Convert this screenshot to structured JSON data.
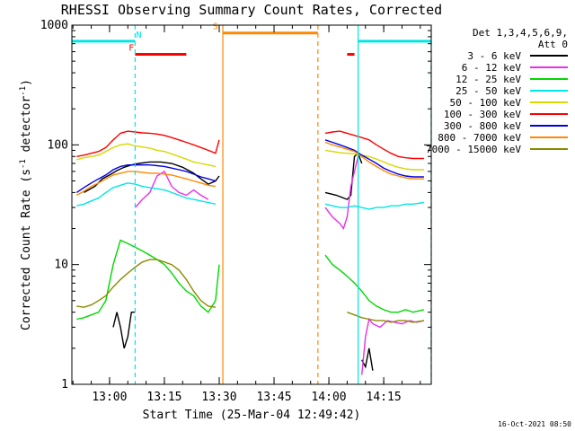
{
  "chart_data": {
    "type": "line",
    "title": "RHESSI Observing Summary Count Rates, Corrected",
    "xlabel": "Start Time (25-Mar-04 12:49:42)",
    "ylabel": "Corrected Count Rate (s",
    "ylabel_sup1": "-1",
    "ylabel_mid": " detector",
    "ylabel_sup2": "-1",
    "ylabel_end": ")",
    "y_scale": "log",
    "ylim": [
      1,
      1000
    ],
    "xlim": [
      "12:49:42",
      "14:28"
    ],
    "y_ticks": [
      "1",
      "10",
      "100",
      "1000"
    ],
    "x_ticks": [
      "13:00",
      "13:15",
      "13:30",
      "13:45",
      "14:00",
      "14:15"
    ],
    "legend_position": "right",
    "legend_header": [
      "Det 1,3,4,5,6,9,",
      "Att 0"
    ],
    "timestamp": "16-Oct-2021 08:50",
    "series": [
      {
        "name": "3 - 6 keV",
        "color": "#000000",
        "segments": [
          {
            "x": [
              "12:53",
              "12:56",
              "12:58",
              "13:00",
              "13:02",
              "13:04",
              "13:06",
              "13:08",
              "13:11",
              "13:14",
              "13:17",
              "13:20",
              "13:23",
              "13:25",
              "13:27",
              "13:29",
              "13:30"
            ],
            "y": [
              40,
              45,
              52,
              56,
              61,
              65,
              68,
              70,
              72,
              72,
              70,
              65,
              58,
              52,
              47,
              50,
              55
            ]
          },
          {
            "x": [
              "13:59",
              "14:02",
              "14:04",
              "14:05",
              "14:06",
              "14:07",
              "14:08",
              "14:09"
            ],
            "y": [
              40,
              38,
              36,
              35,
              38,
              80,
              85,
              70
            ]
          },
          {
            "x": [
              "13:01",
              "13:02",
              "13:03",
              "13:04",
              "13:05",
              "13:06",
              "13:07"
            ],
            "y": [
              3,
              4,
              3,
              2,
              2.5,
              4,
              4
            ]
          },
          {
            "x": [
              "14:09",
              "14:10",
              "14:11",
              "14:12"
            ],
            "y": [
              1.6,
              1.4,
              2,
              1.3
            ]
          }
        ]
      },
      {
        "name": "6 - 12 keV",
        "color": "#e830e8",
        "segments": [
          {
            "x": [
              "13:07",
              "13:09",
              "13:11",
              "13:13",
              "13:15",
              "13:17",
              "13:19",
              "13:21",
              "13:23",
              "13:25",
              "13:27"
            ],
            "y": [
              30,
              35,
              40,
              55,
              60,
              45,
              40,
              38,
              42,
              38,
              35
            ]
          },
          {
            "x": [
              "13:59",
              "14:01",
              "14:03",
              "14:04",
              "14:05",
              "14:06",
              "14:07",
              "14:08"
            ],
            "y": [
              30,
              25,
              22,
              20,
              25,
              45,
              60,
              80
            ]
          },
          {
            "x": [
              "14:09",
              "14:10",
              "14:11",
              "14:12",
              "14:14",
              "14:16",
              "14:18",
              "14:20",
              "14:22",
              "14:24",
              "14:26"
            ],
            "y": [
              1.2,
              2.5,
              3.5,
              3.2,
              3,
              3.4,
              3.3,
              3.2,
              3.4,
              3.3,
              3.4
            ]
          }
        ]
      },
      {
        "name": "12 - 25 keV",
        "color": "#00d800",
        "segments": [
          {
            "x": [
              "12:51",
              "12:53",
              "12:55",
              "12:57",
              "12:59",
              "13:01",
              "13:03",
              "13:05",
              "13:07",
              "13:09",
              "13:11",
              "13:13",
              "13:15",
              "13:17",
              "13:19",
              "13:21",
              "13:23",
              "13:25",
              "13:27",
              "13:29",
              "13:30"
            ],
            "y": [
              3.5,
              3.6,
              3.8,
              4,
              5,
              10,
              16,
              15,
              14,
              13,
              12,
              11,
              10,
              8.5,
              7,
              6,
              5.5,
              4.5,
              4,
              5,
              10
            ]
          },
          {
            "x": [
              "13:59",
              "14:01",
              "14:03",
              "14:05",
              "14:07",
              "14:09",
              "14:11",
              "14:13",
              "14:15",
              "14:17",
              "14:19",
              "14:21",
              "14:23",
              "14:26"
            ],
            "y": [
              12,
              10,
              9,
              8,
              7,
              6,
              5,
              4.5,
              4.2,
              4,
              4,
              4.2,
              4,
              4.2
            ]
          }
        ]
      },
      {
        "name": "25 - 50 keV",
        "color": "#00e6e6",
        "segments": [
          {
            "x": [
              "12:51",
              "12:53",
              "12:55",
              "12:57",
              "12:59",
              "13:01",
              "13:03",
              "13:05",
              "13:07",
              "13:09",
              "13:11",
              "13:13",
              "13:15",
              "13:17",
              "13:19",
              "13:21",
              "13:23",
              "13:25",
              "13:27",
              "13:29"
            ],
            "y": [
              31,
              32,
              34,
              36,
              40,
              44,
              46,
              48,
              47,
              45,
              44,
              43,
              42,
              40,
              38,
              36,
              35,
              34,
              33,
              32
            ]
          },
          {
            "x": [
              "13:59",
              "14:01",
              "14:03",
              "14:05",
              "14:07",
              "14:09",
              "14:11",
              "14:13",
              "14:15",
              "14:17",
              "14:19",
              "14:21",
              "14:23",
              "14:26"
            ],
            "y": [
              32,
              31,
              30,
              30,
              31,
              30,
              29,
              30,
              30,
              31,
              31,
              32,
              32,
              33
            ]
          }
        ]
      },
      {
        "name": "50 - 100 keV",
        "color": "#d8d800",
        "segments": [
          {
            "x": [
              "12:51",
              "12:53",
              "12:55",
              "12:57",
              "12:59",
              "13:01",
              "13:03",
              "13:05",
              "13:07",
              "13:09",
              "13:11",
              "13:13",
              "13:15",
              "13:17",
              "13:19",
              "13:21",
              "13:23",
              "13:25",
              "13:27",
              "13:29"
            ],
            "y": [
              75,
              78,
              80,
              82,
              88,
              95,
              100,
              102,
              98,
              96,
              94,
              90,
              88,
              84,
              80,
              76,
              72,
              70,
              68,
              66
            ]
          },
          {
            "x": [
              "13:59",
              "14:01",
              "14:03",
              "14:05",
              "14:07",
              "14:09",
              "14:11",
              "14:13",
              "14:15",
              "14:17",
              "14:19",
              "14:21",
              "14:23",
              "14:26"
            ],
            "y": [
              90,
              88,
              86,
              85,
              84,
              82,
              80,
              76,
              72,
              68,
              65,
              63,
              62,
              62
            ]
          }
        ]
      },
      {
        "name": "100 - 300 keV",
        "color": "#ff0000",
        "segments": [
          {
            "x": [
              "12:51",
              "12:53",
              "12:55",
              "12:57",
              "12:59",
              "13:01",
              "13:03",
              "13:05",
              "13:07",
              "13:09",
              "13:11",
              "13:13",
              "13:15",
              "13:17",
              "13:19",
              "13:21",
              "13:23",
              "13:25",
              "13:27",
              "13:29",
              "13:30"
            ],
            "y": [
              80,
              82,
              85,
              88,
              95,
              110,
              125,
              130,
              128,
              126,
              125,
              123,
              120,
              115,
              110,
              105,
              100,
              95,
              90,
              85,
              110
            ]
          },
          {
            "x": [
              "13:59",
              "14:01",
              "14:03",
              "14:05",
              "14:07",
              "14:09",
              "14:11",
              "14:13",
              "14:15",
              "14:17",
              "14:19",
              "14:21",
              "14:23",
              "14:26"
            ],
            "y": [
              125,
              128,
              130,
              125,
              120,
              115,
              110,
              100,
              92,
              85,
              80,
              78,
              77,
              77
            ]
          }
        ]
      },
      {
        "name": "300 - 800 keV",
        "color": "#0000e0",
        "segments": [
          {
            "x": [
              "12:51",
              "12:53",
              "12:55",
              "12:57",
              "12:59",
              "13:01",
              "13:03",
              "13:05",
              "13:07",
              "13:09",
              "13:11",
              "13:13",
              "13:15",
              "13:17",
              "13:19",
              "13:21",
              "13:23",
              "13:25",
              "13:27",
              "13:29"
            ],
            "y": [
              40,
              44,
              48,
              52,
              56,
              62,
              66,
              68,
              68,
              68,
              68,
              67,
              66,
              64,
              62,
              60,
              57,
              54,
              52,
              50
            ]
          },
          {
            "x": [
              "13:59",
              "14:01",
              "14:03",
              "14:05",
              "14:07",
              "14:09",
              "14:11",
              "14:13",
              "14:15",
              "14:17",
              "14:19",
              "14:21",
              "14:23",
              "14:26"
            ],
            "y": [
              110,
              105,
              100,
              95,
              90,
              82,
              76,
              70,
              64,
              60,
              57,
              55,
              54,
              54
            ]
          }
        ]
      },
      {
        "name": "800 - 7000 keV",
        "color": "#ff8800",
        "segments": [
          {
            "x": [
              "12:51",
              "12:53",
              "12:55",
              "12:57",
              "12:59",
              "13:01",
              "13:03",
              "13:05",
              "13:07",
              "13:09",
              "13:11",
              "13:13",
              "13:15",
              "13:17",
              "13:19",
              "13:21",
              "13:23",
              "13:25",
              "13:27",
              "13:29"
            ],
            "y": [
              38,
              41,
              45,
              48,
              52,
              56,
              58,
              60,
              60,
              59,
              58,
              58,
              57,
              56,
              54,
              52,
              50,
              48,
              46,
              45
            ]
          },
          {
            "x": [
              "13:59",
              "14:01",
              "14:03",
              "14:05",
              "14:07",
              "14:09",
              "14:11",
              "14:13",
              "14:15",
              "14:17",
              "14:19",
              "14:21",
              "14:23",
              "14:26"
            ],
            "y": [
              105,
              100,
              96,
              92,
              88,
              80,
              72,
              66,
              61,
              57,
              55,
              53,
              52,
              52
            ]
          }
        ]
      },
      {
        "name": "7000 - 15000 keV",
        "color": "#8a8a00",
        "segments": [
          {
            "x": [
              "12:51",
              "12:53",
              "12:55",
              "12:57",
              "12:59",
              "13:01",
              "13:03",
              "13:05",
              "13:07",
              "13:09",
              "13:11",
              "13:13",
              "13:15",
              "13:17",
              "13:19",
              "13:21",
              "13:23",
              "13:25",
              "13:27",
              "13:29"
            ],
            "y": [
              4.5,
              4.4,
              4.6,
              5,
              5.5,
              6.5,
              7.5,
              8.5,
              9.5,
              10.5,
              11,
              11,
              10.5,
              10,
              9,
              7.5,
              6,
              5,
              4.5,
              4.4
            ]
          },
          {
            "x": [
              "14:05",
              "14:07",
              "14:09",
              "14:11",
              "14:13",
              "14:15",
              "14:17",
              "14:19",
              "14:21",
              "14:23",
              "14:26"
            ],
            "y": [
              4,
              3.8,
              3.6,
              3.5,
              3.4,
              3.4,
              3.3,
              3.4,
              3.4,
              3.3,
              3.4
            ]
          }
        ]
      }
    ],
    "flags": [
      {
        "label": "",
        "color": "#00e6e6",
        "level": 735,
        "spans": [
          [
            "12:49:42",
            "13:07"
          ],
          [
            "14:08",
            "14:28"
          ]
        ]
      },
      {
        "label": "N",
        "color": "#00e6e6",
        "level": 735,
        "label_at": "13:08",
        "spans": []
      },
      {
        "label": "F",
        "color": "#ff0000",
        "level": 570,
        "label_at": "13:06",
        "spans": [
          [
            "13:07",
            "13:21"
          ],
          [
            "14:05",
            "14:07"
          ]
        ]
      },
      {
        "label": "S",
        "color": "#ff8800",
        "level": 860,
        "label_at": "13:29",
        "spans": [
          [
            "13:31",
            "13:57"
          ]
        ]
      }
    ],
    "vertical_markers": [
      {
        "time": "13:07",
        "color": "#00e6e6",
        "style": "dashed"
      },
      {
        "time": "14:08",
        "color": "#00e6e6",
        "style": "solid"
      },
      {
        "time": "14:28",
        "color": "#00e6e6",
        "style": "dashed"
      },
      {
        "time": "13:31",
        "color": "#ff8800",
        "style": "solid"
      },
      {
        "time": "13:57",
        "color": "#ff8800",
        "style": "dashed"
      }
    ]
  }
}
